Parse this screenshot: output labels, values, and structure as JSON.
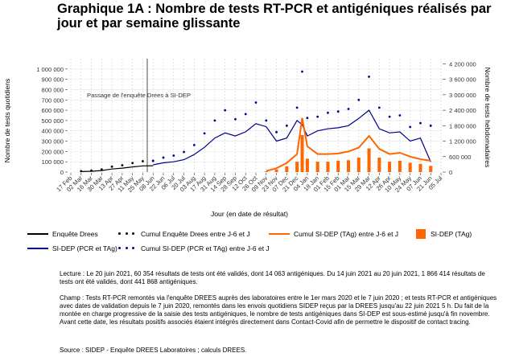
{
  "title": "Graphique 1A : Nombre de tests RT-PCR et antigéniques réalisés par jour et par semaine glissante",
  "annotation": "Passage de l'enquête Drees à SI-DEP",
  "chart_data": {
    "type": "line",
    "xlabel": "Jour (en date de résultat)",
    "ylabel_left": "Nombre de tests quotidiens",
    "ylabel_right": "Nombre de tests hebdomadaires",
    "ylim_left": [
      0,
      1100000
    ],
    "ylim_right": [
      0,
      4400000
    ],
    "yticks_left": [
      "0",
      "100 000",
      "200 000",
      "300 000",
      "400 000",
      "500 000",
      "600 000",
      "700 000",
      "800 000",
      "900 000",
      "1 000 000"
    ],
    "yticks_right": [
      "0",
      "600 000",
      "1 200 000",
      "1 800 000",
      "2 400 000",
      "3 000 000",
      "3 600 000",
      "4 200 000"
    ],
    "xticks": [
      "17 Feb",
      "02 Mar",
      "16 Mar",
      "30 Mar",
      "13 Apr",
      "27 Apr",
      "11 May",
      "25 May",
      "08 Jun",
      "22 Jun",
      "06 Jul",
      "20 Jul",
      "03 Aug",
      "17 Aug",
      "31 Aug",
      "14 Sep",
      "28 Sep",
      "12 Oct",
      "26 Oct",
      "09 Nov",
      "23 Nov",
      "07 Dec",
      "21 Dec",
      "04 Jan",
      "18 Jan",
      "01 Feb",
      "15 Feb",
      "01 Mar",
      "15 Mar",
      "29 Mar",
      "12 Apr",
      "26 Apr",
      "10 May",
      "24 May",
      "07 Jun",
      "21 Jun",
      "05 Jul"
    ],
    "series": [
      {
        "name": "Enquête Drees",
        "axis": "left",
        "color": "#000000",
        "x": [
          "02 Mar",
          "16 Mar",
          "30 Mar",
          "13 Apr",
          "27 Apr",
          "11 May",
          "25 May",
          "08 Jun"
        ],
        "y": [
          5000,
          8000,
          15000,
          30000,
          38000,
          50000,
          60000,
          62000
        ]
      },
      {
        "name": "Cumul Enquête Drees entre J-6 et J",
        "axis": "right",
        "color": "#000000",
        "x": [
          "02 Mar",
          "16 Mar",
          "30 Mar",
          "13 Apr",
          "27 Apr",
          "11 May",
          "25 May",
          "08 Jun"
        ],
        "y": [
          35000,
          56000,
          105000,
          210000,
          266000,
          350000,
          420000,
          434000
        ]
      },
      {
        "name": "SI-DEP (PCR et TAg)",
        "axis": "left",
        "color": "#00008b",
        "x": [
          "08 Jun",
          "22 Jun",
          "06 Jul",
          "20 Jul",
          "03 Aug",
          "17 Aug",
          "31 Aug",
          "14 Sep",
          "28 Sep",
          "12 Oct",
          "26 Oct",
          "09 Nov",
          "23 Nov",
          "07 Dec",
          "21 Dec",
          "28 Dec",
          "04 Jan",
          "18 Jan",
          "01 Feb",
          "15 Feb",
          "01 Mar",
          "15 Mar",
          "29 Mar",
          "12 Apr",
          "26 Apr",
          "10 May",
          "24 May",
          "07 Jun",
          "21 Jun"
        ],
        "y": [
          70000,
          90000,
          100000,
          120000,
          170000,
          240000,
          330000,
          380000,
          350000,
          390000,
          470000,
          440000,
          300000,
          330000,
          500000,
          460000,
          350000,
          400000,
          420000,
          430000,
          450000,
          520000,
          600000,
          420000,
          380000,
          390000,
          300000,
          330000,
          100000
        ]
      },
      {
        "name": "Cumul SI-DEP (PCR et TAg) entre J-6 et J",
        "axis": "right",
        "color": "#00008b",
        "x": [
          "08 Jun",
          "22 Jun",
          "06 Jul",
          "20 Jul",
          "03 Aug",
          "17 Aug",
          "31 Aug",
          "14 Sep",
          "28 Sep",
          "12 Oct",
          "26 Oct",
          "09 Nov",
          "23 Nov",
          "07 Dec",
          "21 Dec",
          "28 Dec",
          "04 Jan",
          "18 Jan",
          "01 Feb",
          "15 Feb",
          "01 Mar",
          "15 Mar",
          "29 Mar",
          "12 Apr",
          "26 Apr",
          "10 May",
          "24 May",
          "07 Jun",
          "21 Jun"
        ],
        "y": [
          440000,
          560000,
          640000,
          780000,
          1050000,
          1500000,
          2000000,
          2400000,
          2050000,
          2250000,
          2700000,
          2000000,
          1550000,
          1800000,
          2500000,
          3900000,
          2100000,
          2150000,
          2300000,
          2350000,
          2450000,
          2800000,
          3700000,
          2500000,
          2150000,
          2200000,
          1750000,
          1900000,
          1800000
        ]
      },
      {
        "name": "Cumul SI-DEP (TAg) entre J-6 et J",
        "axis": "right",
        "color": "#ff6600",
        "x": [
          "09 Nov",
          "23 Nov",
          "07 Dec",
          "21 Dec",
          "28 Dec",
          "04 Jan",
          "18 Jan",
          "01 Feb",
          "15 Feb",
          "01 Mar",
          "15 Mar",
          "29 Mar",
          "12 Apr",
          "26 Apr",
          "10 May",
          "24 May",
          "07 Jun",
          "21 Jun"
        ],
        "y": [
          40000,
          150000,
          350000,
          700000,
          2100000,
          1000000,
          700000,
          700000,
          720000,
          800000,
          950000,
          1400000,
          900000,
          700000,
          750000,
          600000,
          500000,
          440000
        ]
      },
      {
        "name": "SI-DEP (TAg)",
        "axis": "left",
        "color": "#ff6600",
        "x": [
          "09 Nov",
          "23 Nov",
          "07 Dec",
          "21 Dec",
          "28 Dec",
          "04 Jan",
          "18 Jan",
          "01 Feb",
          "15 Feb",
          "01 Mar",
          "15 Mar",
          "29 Mar",
          "12 Apr",
          "26 Apr",
          "10 May",
          "24 May",
          "07 Jun",
          "21 Jun"
        ],
        "y": [
          6000,
          25000,
          55000,
          100000,
          360000,
          130000,
          100000,
          100000,
          110000,
          115000,
          140000,
          230000,
          140000,
          100000,
          110000,
          90000,
          80000,
          60000
        ]
      }
    ],
    "legend_position": "bottom"
  },
  "notes": {
    "lecture": "Lecture : Le 20 juin 2021, 60 354 résultats de tests ont été validés, dont 14 063 antigéniques. Du 14 juin 2021 au 20 juin 2021, 1 866 414 résultats de tests ont été validés, dont 441 868 antigéniques.",
    "champ": "Champ : Tests RT-PCR remontés via l'enquête DREES auprès des laboratoires entre le 1er mars 2020 et le 7 juin 2020 ; et tests RT-PCR et antigéniques avec dates de validation depuis le 7 juin 2020, remontés dans les envois quotidiens SIDEP reçus par la DREES jusqu'au 22 juin 2021 5 h. Du fait de la montée en charge progressive de la saisie des tests antigéniques, le nombre de tests antigéniques dans SI-DEP est sous-estimé jusqu'à fin novembre. Avant cette date, les résultats positifs associés étaient intégrés directement dans Contact-Covid afin de permettre le dispositif de contact tracing.",
    "source": "Source : SIDEP - Enquête DREES Laboratoires ; calculs DREES."
  }
}
